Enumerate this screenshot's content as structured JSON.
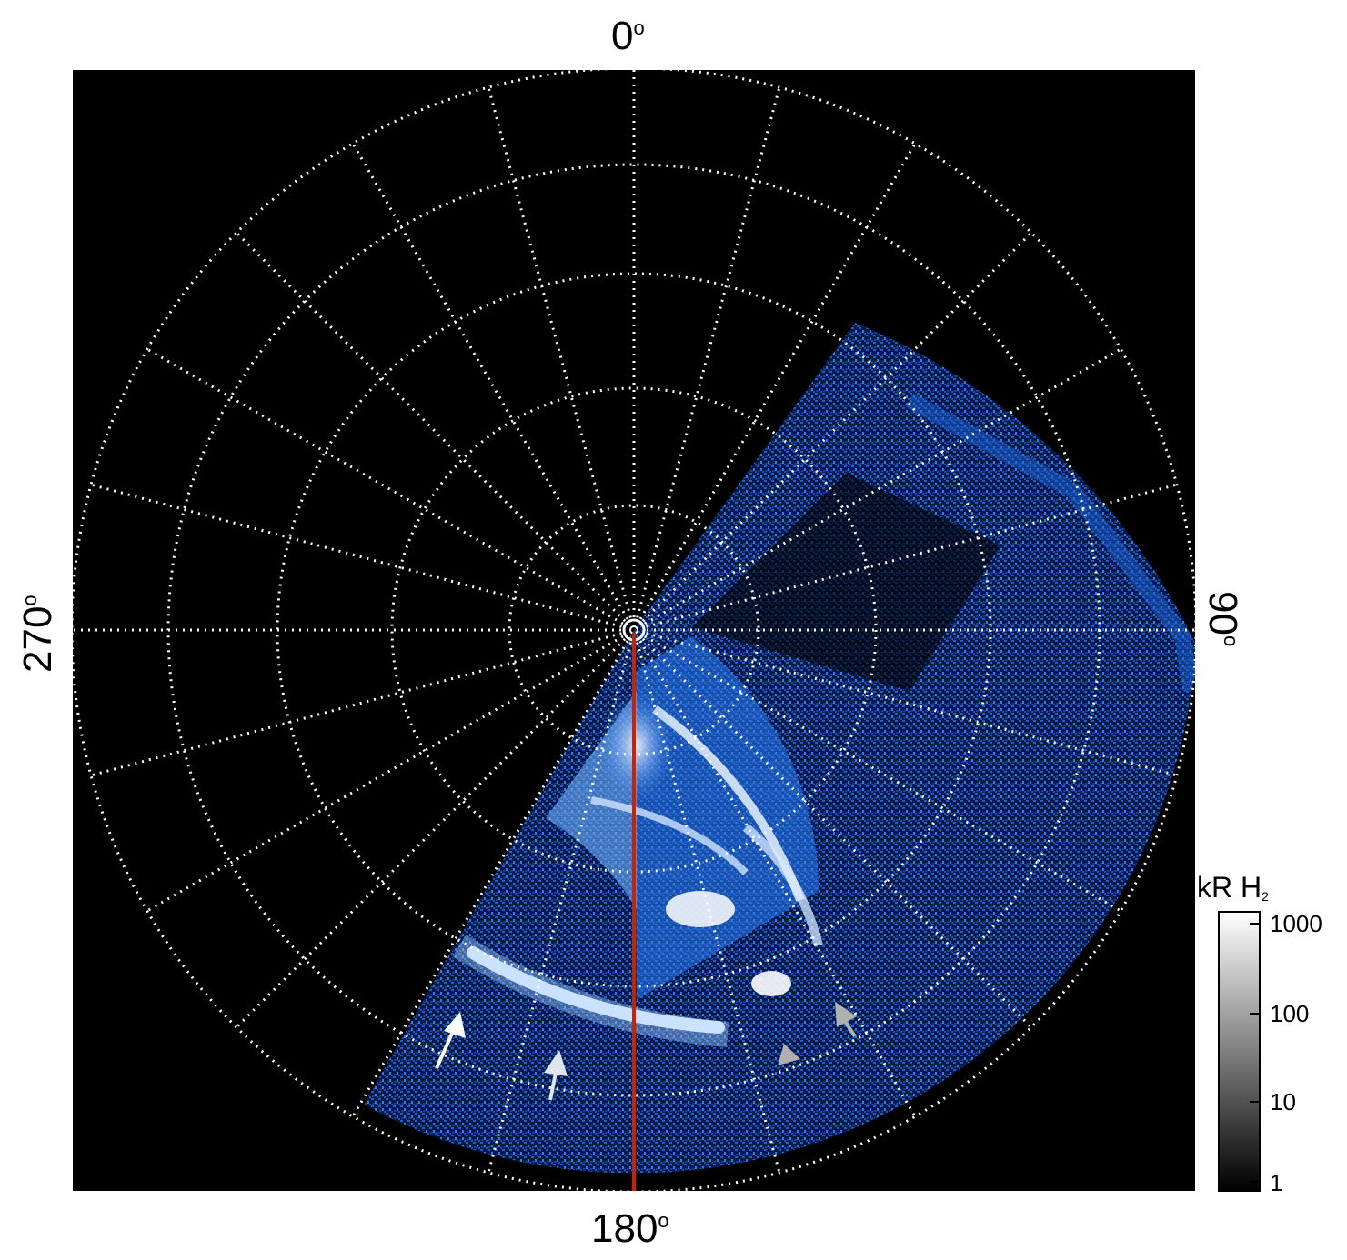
{
  "axis_labels": {
    "top": "0",
    "right": "90",
    "bottom": "180",
    "left": "270",
    "degree_symbol": "o"
  },
  "colorbar": {
    "title_main": "kR H",
    "title_sub": "2",
    "ticks": [
      "1000",
      "100",
      "10",
      "1"
    ],
    "scale": "log",
    "range": [
      1,
      1000
    ],
    "gradient": "black-to-white"
  },
  "colors": {
    "background": "#000000",
    "aurora": "#1a6ff0",
    "aurora_bright": "#e8f2ff",
    "grid": "#ffffff",
    "meridian_line": "#cc2200",
    "arrow_white": "#ffffff",
    "arrow_gray": "#b0b0b0"
  },
  "grid": {
    "style": "dotted",
    "meridian_step_deg": 15,
    "circle_count": 5
  },
  "markers": {
    "white_arrows": 2,
    "gray_arrows": 2,
    "red_line": "meridian at 180"
  }
}
